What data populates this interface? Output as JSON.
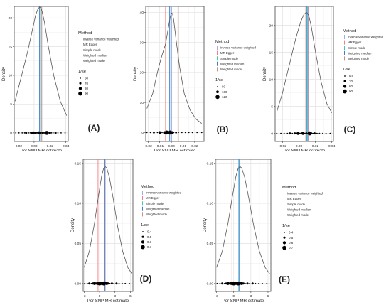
{
  "common": {
    "xlabel": "Per SNP MR estimate",
    "ylabel": "Density",
    "legend_title": "Method",
    "size_title": "1/se",
    "methods": [
      "Inverse variance weighted",
      "MR Egger",
      "Simple mode",
      "Weighted median",
      "Weighted mode"
    ],
    "colors": {
      "Inverse variance weighted": "#a8a8e8",
      "MR Egger": "#f08080",
      "Simple mode": "#45c6b4",
      "Weighted median": "#3a7fcf",
      "Weighted mode": "#c98a8a"
    },
    "curve_color": "#555555",
    "grid_color": "#ebebeb"
  },
  "chart_data": [
    {
      "label": "(A)",
      "type": "line",
      "xlim": [
        -0.025,
        0.043
      ],
      "ylim": [
        -1.5,
        22
      ],
      "xticks": [
        -0.02,
        0.0,
        0.02,
        0.04
      ],
      "xtick_labels": [
        "-0.02",
        "0.00",
        "0.02",
        "0.04"
      ],
      "yticks": [
        0,
        5,
        10,
        15,
        20
      ],
      "ytick_labels": [
        "0",
        "5",
        "10",
        "15",
        "20"
      ],
      "density_x": [
        -0.024,
        -0.016,
        -0.008,
        -0.002,
        0.002,
        0.005,
        0.007,
        0.008,
        0.01,
        0.013,
        0.018,
        0.025,
        0.033,
        0.041
      ],
      "density_y": [
        5.5,
        9.8,
        14.2,
        18.0,
        20.5,
        21.6,
        21.9,
        21.8,
        21.2,
        19.3,
        15.0,
        9.8,
        5.5,
        3.0
      ],
      "vlines": {
        "MR Egger": -0.004,
        "Weighted median": 0.0067,
        "Simple mode": 0.0081,
        "Inverse variance weighted": 0.0088,
        "Weighted mode": 0.0097
      },
      "snp_x": [
        -0.023,
        -0.019,
        -0.015,
        -0.012,
        -0.01,
        -0.007,
        -0.005,
        -0.003,
        -0.001,
        0.0,
        0.002,
        0.003,
        0.004,
        0.006,
        0.008,
        0.01,
        0.011,
        0.012,
        0.014,
        0.016,
        0.018,
        0.02,
        0.022,
        0.024,
        0.027,
        0.03,
        0.034,
        0.039
      ],
      "snp_size": [
        60,
        60,
        60,
        60,
        70,
        60,
        60,
        70,
        80,
        60,
        70,
        60,
        60,
        80,
        70,
        60,
        70,
        60,
        70,
        90,
        60,
        70,
        60,
        60,
        70,
        60,
        60,
        60
      ],
      "size_legend": [
        60,
        70,
        80,
        90
      ]
    },
    {
      "label": "(B)",
      "type": "line",
      "xlim": [
        -0.022,
        0.028
      ],
      "ylim": [
        -3,
        42
      ],
      "xticks": [
        -0.02,
        -0.01,
        0.0,
        0.01,
        0.02
      ],
      "xtick_labels": [
        "-0.02",
        "-0.01",
        "0.00",
        "0.01",
        "0.02"
      ],
      "yticks": [
        0,
        10,
        20,
        30,
        40
      ],
      "ytick_labels": [
        "0",
        "10",
        "20",
        "30",
        "40"
      ],
      "density_x": [
        -0.021,
        -0.016,
        -0.012,
        -0.009,
        -0.007,
        -0.005,
        -0.003,
        -0.001,
        0.0,
        0.001,
        0.002,
        0.004,
        0.007,
        0.011,
        0.016,
        0.021,
        0.026
      ],
      "density_y": [
        8.0,
        13.0,
        20.0,
        24.5,
        27.0,
        29.5,
        34.0,
        38.5,
        39.8,
        39.6,
        37.5,
        31.0,
        22.0,
        13.0,
        7.5,
        4.5,
        3.0
      ],
      "vlines": {
        "MR Egger": -0.005,
        "Weighted median": -0.0015,
        "Simple mode": -0.0005,
        "Inverse variance weighted": 0.0003,
        "Weighted mode": 0.006
      },
      "snp_x": [
        -0.021,
        -0.018,
        -0.015,
        -0.012,
        -0.01,
        -0.008,
        -0.006,
        -0.004,
        -0.003,
        -0.002,
        -0.001,
        0.0,
        0.001,
        0.002,
        0.004,
        0.006,
        0.009,
        0.012,
        0.015,
        0.018,
        0.022,
        0.026
      ],
      "snp_size": [
        80,
        80,
        90,
        80,
        100,
        80,
        100,
        120,
        90,
        100,
        120,
        90,
        100,
        80,
        90,
        80,
        80,
        80,
        80,
        80,
        80,
        80
      ],
      "size_legend": [
        80,
        100,
        120
      ]
    },
    {
      "label": "(C)",
      "type": "line",
      "xlim": [
        -0.029,
        0.042
      ],
      "ylim": [
        -1.5,
        23.5
      ],
      "xticks": [
        -0.02,
        0.0,
        0.02,
        0.04
      ],
      "xtick_labels": [
        "-0.02",
        "0.00",
        "0.02",
        "0.04"
      ],
      "yticks": [
        0,
        5,
        10,
        15,
        20
      ],
      "ytick_labels": [
        "0",
        "5",
        "10",
        "15",
        "20"
      ],
      "density_x": [
        -0.027,
        -0.02,
        -0.012,
        -0.004,
        0.002,
        0.006,
        0.009,
        0.01,
        0.012,
        0.015,
        0.02,
        0.027,
        0.034,
        0.04
      ],
      "density_y": [
        4.0,
        7.5,
        12.5,
        17.5,
        20.6,
        22.0,
        22.4,
        22.3,
        21.8,
        19.8,
        15.2,
        9.5,
        5.5,
        3.8
      ],
      "vlines": {
        "MR Egger": 0.0083,
        "Weighted median": 0.0093,
        "Simple mode": 0.0102,
        "Inverse variance weighted": 0.0109,
        "Weighted mode": 0.0116
      },
      "snp_x": [
        -0.027,
        -0.022,
        -0.018,
        -0.014,
        -0.011,
        -0.008,
        -0.005,
        -0.003,
        -0.001,
        0.001,
        0.003,
        0.005,
        0.007,
        0.009,
        0.011,
        0.013,
        0.015,
        0.017,
        0.019,
        0.022,
        0.025,
        0.029,
        0.033,
        0.038
      ],
      "snp_size": [
        60,
        60,
        60,
        60,
        70,
        60,
        70,
        60,
        80,
        60,
        70,
        80,
        60,
        70,
        60,
        90,
        70,
        60,
        70,
        60,
        60,
        60,
        60,
        60
      ],
      "size_legend": [
        60,
        70,
        80,
        90
      ]
    },
    {
      "label": "(D)",
      "type": "line",
      "xlim": [
        -3.2,
        6.5
      ],
      "ylim": [
        -0.01,
        0.155
      ],
      "xticks": [
        -3,
        0,
        3,
        6
      ],
      "xtick_labels": [
        "-3",
        "0",
        "3",
        "6"
      ],
      "yticks": [
        0.0,
        0.05,
        0.1,
        0.15
      ],
      "ytick_labels": [
        "0.00",
        "0.05",
        "0.10",
        "0.15"
      ],
      "density_x": [
        -3.0,
        -2.0,
        -1.0,
        -0.2,
        0.4,
        0.8,
        1.1,
        1.4,
        1.9,
        2.6,
        3.5,
        4.5,
        5.5,
        6.3
      ],
      "density_y": [
        0.02,
        0.04,
        0.075,
        0.11,
        0.134,
        0.144,
        0.146,
        0.144,
        0.133,
        0.108,
        0.072,
        0.04,
        0.02,
        0.012
      ],
      "vlines": {
        "MR Egger": -0.3,
        "Weighted median": 0.9,
        "Simple mode": 0.95,
        "Inverse variance weighted": 1.05,
        "Weighted mode": 1.1
      },
      "snp_x": [
        -2.9,
        -2.4,
        -2.0,
        -1.6,
        -1.3,
        -1.0,
        -0.7,
        -0.4,
        -0.2,
        0.0,
        0.2,
        0.4,
        0.6,
        0.8,
        1.0,
        1.2,
        1.4,
        1.7,
        2.0,
        2.4,
        2.8,
        3.3,
        3.8,
        4.4,
        5.0,
        5.8
      ],
      "snp_size": [
        0.4,
        0.4,
        0.5,
        0.4,
        0.5,
        0.6,
        0.5,
        0.6,
        0.4,
        0.7,
        0.5,
        0.6,
        0.5,
        0.7,
        0.6,
        0.5,
        0.6,
        0.5,
        0.4,
        0.5,
        0.4,
        0.5,
        0.4,
        0.4,
        0.4,
        0.4
      ],
      "size_legend": [
        0.4,
        0.5,
        0.6,
        0.7
      ]
    },
    {
      "label": "(E)",
      "type": "line",
      "xlim": [
        -3.2,
        6.5
      ],
      "ylim": [
        -0.01,
        0.155
      ],
      "xticks": [
        -3,
        0,
        3,
        6
      ],
      "xtick_labels": [
        "-3",
        "0",
        "3",
        "6"
      ],
      "yticks": [
        0.0,
        0.05,
        0.1,
        0.15
      ],
      "ytick_labels": [
        "0.00",
        "0.05",
        "0.10",
        "0.15"
      ],
      "density_x": [
        -3.0,
        -2.0,
        -1.0,
        -0.2,
        0.4,
        0.8,
        1.1,
        1.4,
        1.9,
        2.6,
        3.5,
        4.5,
        5.5,
        6.3
      ],
      "density_y": [
        0.02,
        0.04,
        0.075,
        0.11,
        0.134,
        0.144,
        0.146,
        0.144,
        0.133,
        0.108,
        0.072,
        0.04,
        0.02,
        0.012
      ],
      "vlines": {
        "MR Egger": -0.3,
        "Weighted median": 0.9,
        "Simple mode": 0.95,
        "Inverse variance weighted": 1.05,
        "Weighted mode": 1.1
      },
      "snp_x": [
        -2.9,
        -2.4,
        -2.0,
        -1.6,
        -1.3,
        -1.0,
        -0.7,
        -0.4,
        -0.2,
        0.0,
        0.2,
        0.4,
        0.6,
        0.8,
        1.0,
        1.2,
        1.4,
        1.7,
        2.0,
        2.4,
        2.8,
        3.3,
        3.8,
        4.4,
        5.0,
        5.8
      ],
      "snp_size": [
        0.4,
        0.4,
        0.5,
        0.4,
        0.5,
        0.6,
        0.5,
        0.6,
        0.4,
        0.7,
        0.5,
        0.6,
        0.5,
        0.7,
        0.6,
        0.5,
        0.6,
        0.5,
        0.4,
        0.5,
        0.4,
        0.5,
        0.4,
        0.4,
        0.4,
        0.4
      ],
      "size_legend": [
        0.4,
        0.5,
        0.6,
        0.7
      ]
    }
  ]
}
